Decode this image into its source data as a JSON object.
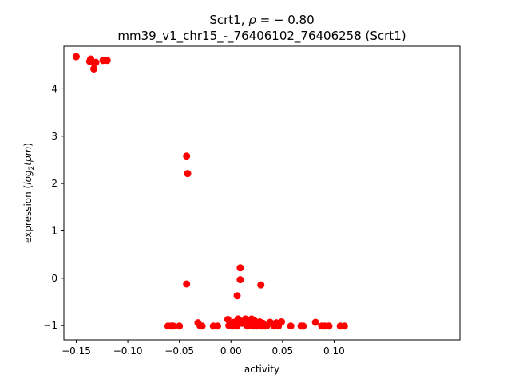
{
  "chart_data": {
    "type": "scatter",
    "title_line1_prefix": "Scrt1, ",
    "title_line1_rho": "ρ",
    "title_line1_suffix": " = − 0.80",
    "title_line2": "mm39_v1_chr15_-_76406102_76406258 (Scrt1)",
    "xlabel": "activity",
    "ylabel_prefix": "expression (",
    "ylabel_math": "log",
    "ylabel_sub": "2",
    "ylabel_math2": "tpm",
    "ylabel_suffix": ")",
    "xlim": [
      -0.162,
      0.222
    ],
    "ylim": [
      -1.3,
      4.9
    ],
    "x_ticks": [
      -0.15,
      -0.1,
      -0.05,
      0.0,
      0.05,
      0.1
    ],
    "x_tick_labels": [
      "−0.15",
      "−0.10",
      "−0.05",
      "0.00",
      "0.05",
      "0.10"
    ],
    "y_ticks": [
      -1,
      0,
      1,
      2,
      3,
      4
    ],
    "y_tick_labels": [
      "−1",
      "0",
      "1",
      "2",
      "3",
      "4"
    ],
    "grid": false,
    "marker_color": "#ff0000",
    "points": [
      [
        -0.15,
        4.68
      ],
      [
        -0.137,
        4.58
      ],
      [
        -0.136,
        4.63
      ],
      [
        -0.134,
        4.56
      ],
      [
        -0.132,
        4.55
      ],
      [
        -0.131,
        4.56
      ],
      [
        -0.133,
        4.42
      ],
      [
        -0.124,
        4.6
      ],
      [
        -0.12,
        4.6
      ],
      [
        -0.043,
        2.58
      ],
      [
        -0.042,
        2.21
      ],
      [
        -0.043,
        -0.12
      ],
      [
        0.009,
        0.22
      ],
      [
        0.009,
        -0.03
      ],
      [
        0.006,
        -0.37
      ],
      [
        0.029,
        -0.14
      ],
      [
        -0.061,
        -1.01
      ],
      [
        -0.058,
        -1.01
      ],
      [
        -0.056,
        -1.01
      ],
      [
        -0.05,
        -1.01
      ],
      [
        -0.032,
        -0.94
      ],
      [
        -0.03,
        -1.0
      ],
      [
        -0.028,
        -1.01
      ],
      [
        -0.017,
        -1.01
      ],
      [
        -0.013,
        -1.01
      ],
      [
        -0.003,
        -0.87
      ],
      [
        -0.002,
        -1.0
      ],
      [
        0.001,
        -0.97
      ],
      [
        0.002,
        -1.01
      ],
      [
        0.003,
        -0.93
      ],
      [
        0.004,
        -0.98
      ],
      [
        0.006,
        -1.01
      ],
      [
        0.007,
        -0.86
      ],
      [
        0.009,
        -0.91
      ],
      [
        0.011,
        -0.95
      ],
      [
        0.013,
        -0.93
      ],
      [
        0.014,
        -0.86
      ],
      [
        0.015,
        -0.96
      ],
      [
        0.016,
        -1.01
      ],
      [
        0.017,
        -0.9
      ],
      [
        0.018,
        -0.97
      ],
      [
        0.019,
        -1.0
      ],
      [
        0.02,
        -0.86
      ],
      [
        0.021,
        -0.93
      ],
      [
        0.022,
        -1.01
      ],
      [
        0.023,
        -0.9
      ],
      [
        0.024,
        -0.96
      ],
      [
        0.025,
        -1.01
      ],
      [
        0.026,
        -0.94
      ],
      [
        0.027,
        -1.0
      ],
      [
        0.028,
        -0.92
      ],
      [
        0.029,
        -0.97
      ],
      [
        0.03,
        -1.01
      ],
      [
        0.031,
        -0.95
      ],
      [
        0.033,
        -1.01
      ],
      [
        0.035,
        -1.0
      ],
      [
        0.038,
        -0.93
      ],
      [
        0.042,
        -1.01
      ],
      [
        0.044,
        -0.94
      ],
      [
        0.046,
        -1.01
      ],
      [
        0.049,
        -0.92
      ],
      [
        0.058,
        -1.01
      ],
      [
        0.068,
        -1.01
      ],
      [
        0.07,
        -1.01
      ],
      [
        0.082,
        -0.93
      ],
      [
        0.088,
        -1.01
      ],
      [
        0.091,
        -1.01
      ],
      [
        0.095,
        -1.01
      ],
      [
        0.106,
        -1.01
      ],
      [
        0.11,
        -1.01
      ]
    ]
  }
}
